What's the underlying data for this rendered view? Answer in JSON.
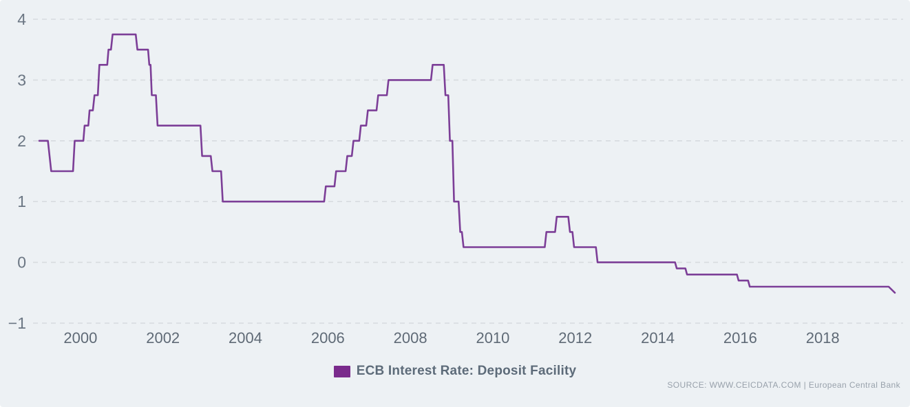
{
  "chart": {
    "legend": {
      "label": "ECB Interest Rate: Deposit Facility",
      "swatch_color": "#7a2b8c"
    },
    "source": "SOURCE: WWW.CEICDATA.COM | European Central Bank",
    "colors": {
      "background": "#edf1f4",
      "line": "#7c3e97",
      "grid": "#d7dbdf",
      "y_axis_text": "#6b7683",
      "x_axis_text": "#5f6a76"
    }
  },
  "chart_data": {
    "type": "line",
    "title": "",
    "xlabel": "",
    "ylabel": "",
    "grid": "dashed-horizontal",
    "legend_position": "bottom",
    "xlim": [
      1998.85,
      2019.95
    ],
    "ylim": [
      -1,
      4
    ],
    "x_ticks": [
      2000,
      2002,
      2004,
      2006,
      2008,
      2010,
      2012,
      2014,
      2016,
      2018
    ],
    "x_tick_labels": [
      "2000",
      "2002",
      "2004",
      "2006",
      "2008",
      "2010",
      "2012",
      "2014",
      "2016",
      "2018"
    ],
    "y_ticks": [
      4,
      3,
      2,
      1,
      0,
      -1
    ],
    "y_tick_labels": [
      "4",
      "3",
      "2",
      "1",
      "0",
      "−1"
    ],
    "series": [
      {
        "name": "ECB Interest Rate: Deposit Facility",
        "color": "#7c3e97",
        "points": [
          [
            1999.0,
            2.0
          ],
          [
            1999.21,
            2.0
          ],
          [
            1999.29,
            1.5
          ],
          [
            1999.82,
            1.5
          ],
          [
            1999.86,
            2.0
          ],
          [
            2000.07,
            2.0
          ],
          [
            2000.1,
            2.25
          ],
          [
            2000.19,
            2.25
          ],
          [
            2000.22,
            2.5
          ],
          [
            2000.3,
            2.5
          ],
          [
            2000.34,
            2.75
          ],
          [
            2000.42,
            2.75
          ],
          [
            2000.46,
            3.25
          ],
          [
            2000.65,
            3.25
          ],
          [
            2000.68,
            3.5
          ],
          [
            2000.74,
            3.5
          ],
          [
            2000.78,
            3.75
          ],
          [
            2001.34,
            3.75
          ],
          [
            2001.38,
            3.5
          ],
          [
            2001.64,
            3.5
          ],
          [
            2001.67,
            3.25
          ],
          [
            2001.7,
            3.25
          ],
          [
            2001.73,
            2.75
          ],
          [
            2001.83,
            2.75
          ],
          [
            2001.87,
            2.25
          ],
          [
            2002.91,
            2.25
          ],
          [
            2002.95,
            1.75
          ],
          [
            2003.16,
            1.75
          ],
          [
            2003.2,
            1.5
          ],
          [
            2003.41,
            1.5
          ],
          [
            2003.45,
            1.0
          ],
          [
            2005.91,
            1.0
          ],
          [
            2005.95,
            1.25
          ],
          [
            2006.16,
            1.25
          ],
          [
            2006.2,
            1.5
          ],
          [
            2006.43,
            1.5
          ],
          [
            2006.47,
            1.75
          ],
          [
            2006.58,
            1.75
          ],
          [
            2006.62,
            2.0
          ],
          [
            2006.76,
            2.0
          ],
          [
            2006.8,
            2.25
          ],
          [
            2006.93,
            2.25
          ],
          [
            2006.97,
            2.5
          ],
          [
            2007.18,
            2.5
          ],
          [
            2007.22,
            2.75
          ],
          [
            2007.43,
            2.75
          ],
          [
            2007.47,
            3.0
          ],
          [
            2008.5,
            3.0
          ],
          [
            2008.54,
            3.25
          ],
          [
            2008.81,
            3.25
          ],
          [
            2008.85,
            2.75
          ],
          [
            2008.92,
            2.75
          ],
          [
            2008.96,
            2.0
          ],
          [
            2009.02,
            2.0
          ],
          [
            2009.06,
            1.0
          ],
          [
            2009.17,
            1.0
          ],
          [
            2009.21,
            0.5
          ],
          [
            2009.25,
            0.5
          ],
          [
            2009.29,
            0.25
          ],
          [
            2011.26,
            0.25
          ],
          [
            2011.3,
            0.5
          ],
          [
            2011.51,
            0.5
          ],
          [
            2011.55,
            0.75
          ],
          [
            2011.83,
            0.75
          ],
          [
            2011.87,
            0.5
          ],
          [
            2011.93,
            0.5
          ],
          [
            2011.97,
            0.25
          ],
          [
            2012.5,
            0.25
          ],
          [
            2012.54,
            0.0
          ],
          [
            2014.42,
            0.0
          ],
          [
            2014.46,
            -0.1
          ],
          [
            2014.67,
            -0.1
          ],
          [
            2014.71,
            -0.2
          ],
          [
            2015.92,
            -0.2
          ],
          [
            2015.96,
            -0.3
          ],
          [
            2016.19,
            -0.3
          ],
          [
            2016.23,
            -0.4
          ],
          [
            2019.6,
            -0.4
          ],
          [
            2019.75,
            -0.5
          ]
        ]
      }
    ]
  }
}
